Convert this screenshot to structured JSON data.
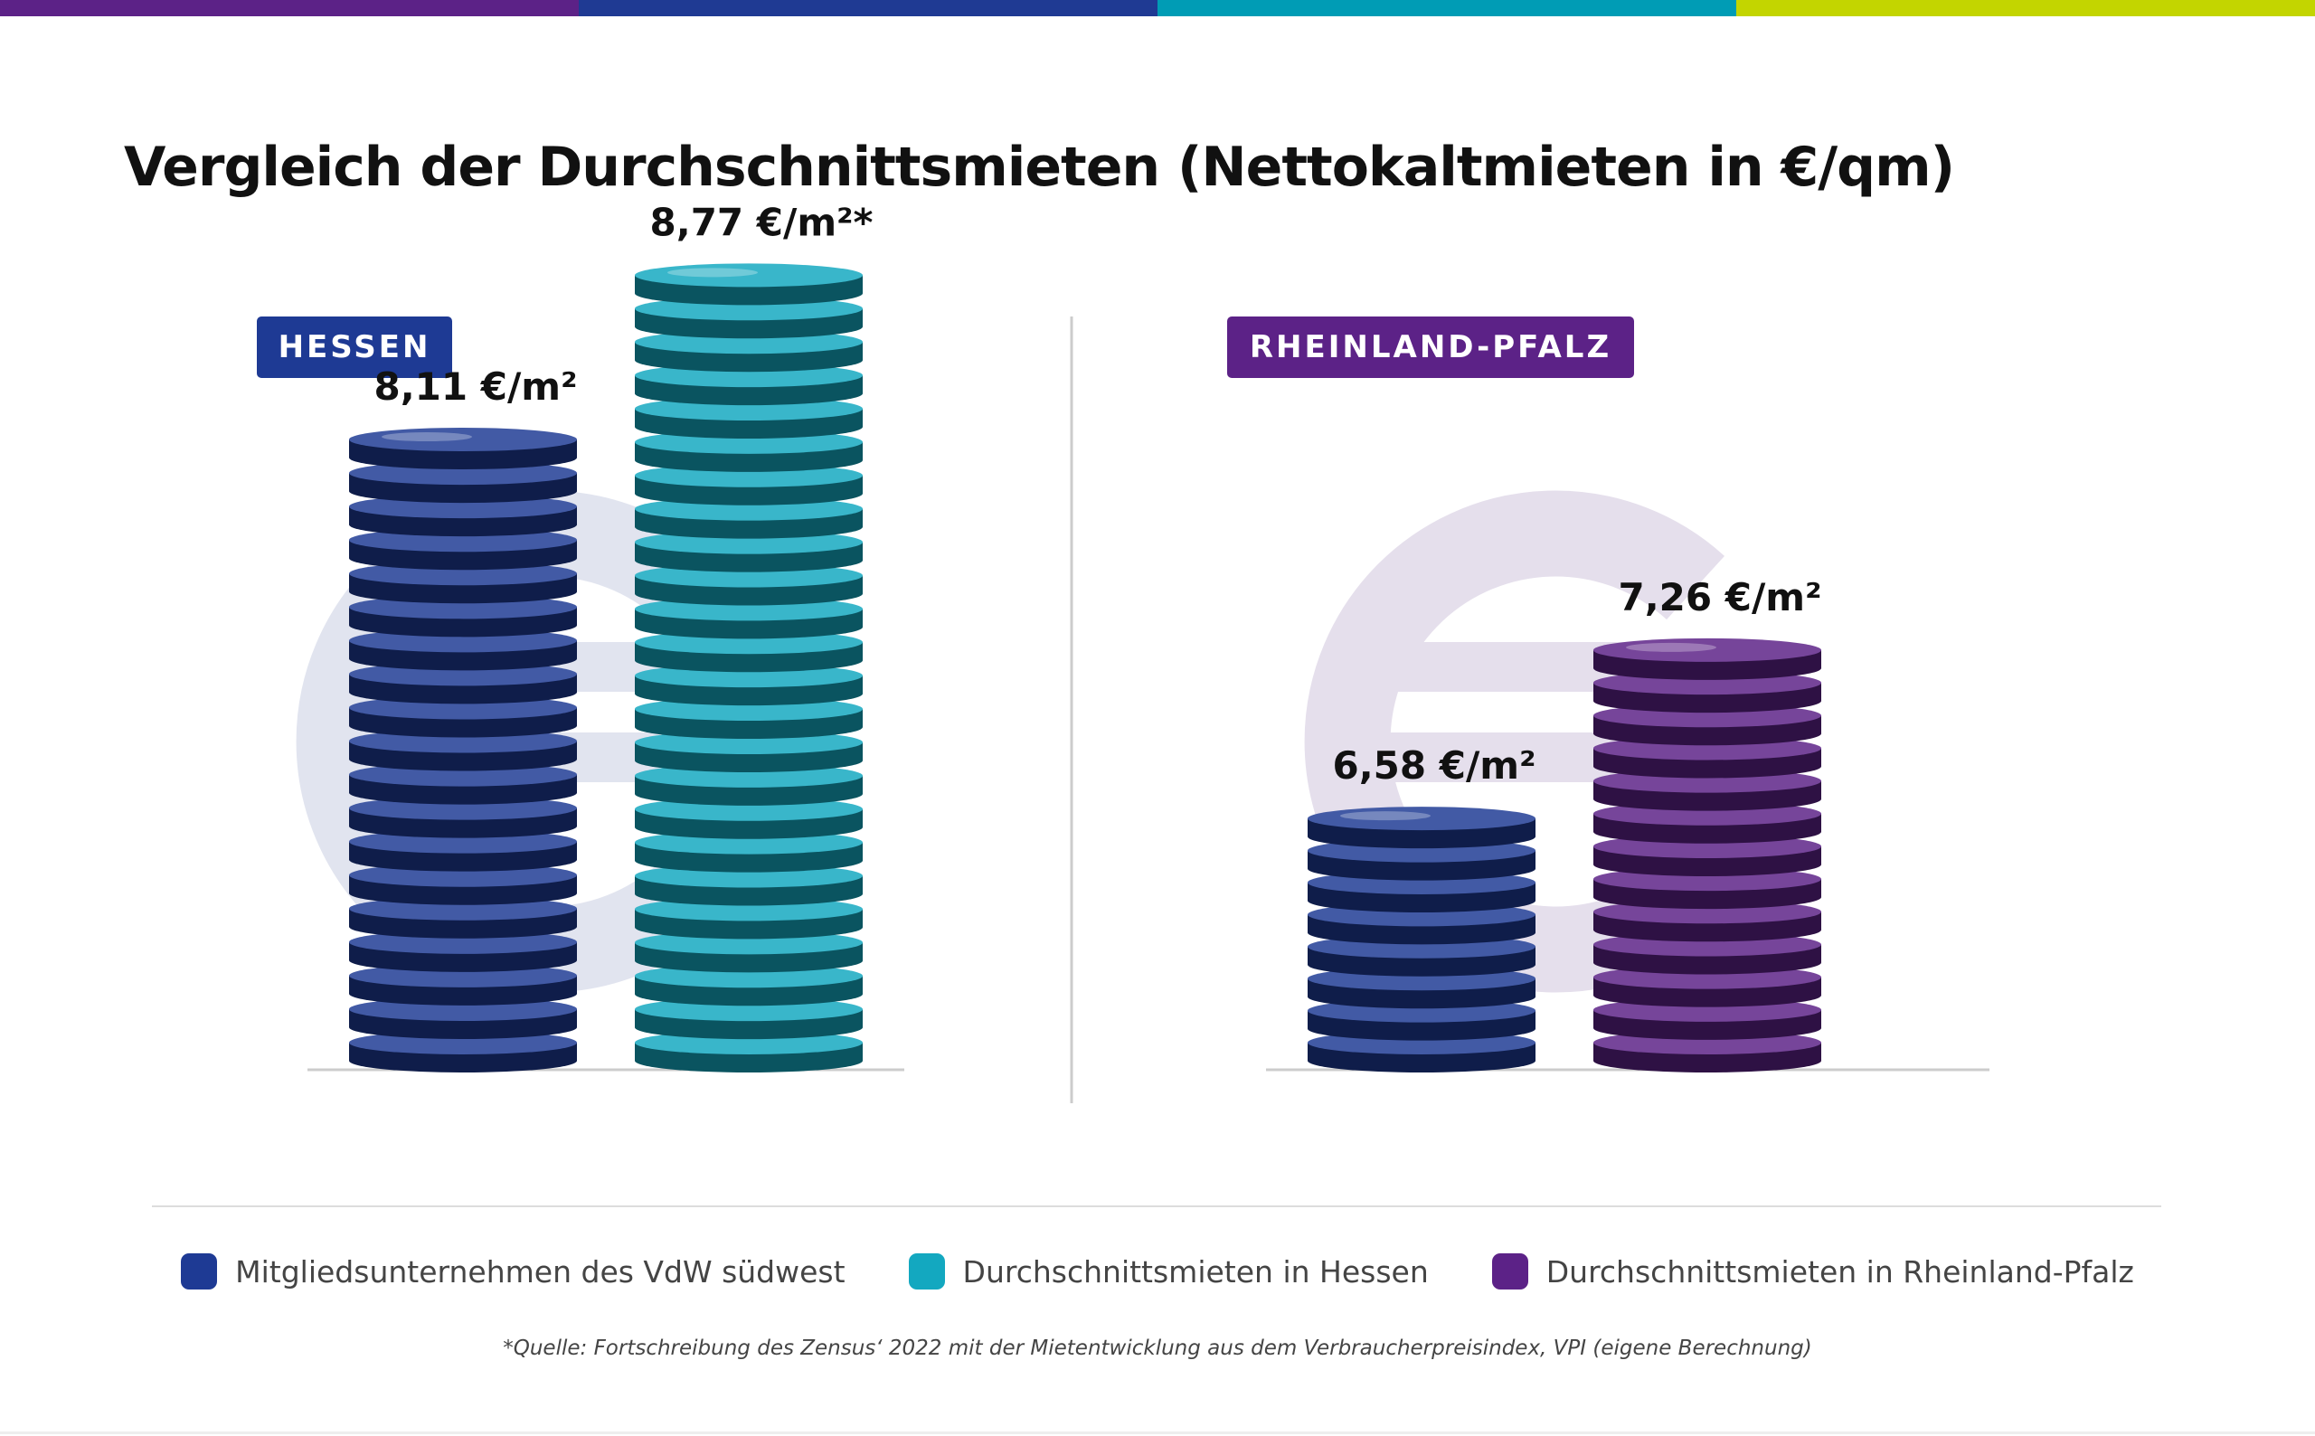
{
  "colors": {
    "band": [
      "#5c2287",
      "#1f3a93",
      "#009cb5",
      "#c3d500"
    ],
    "vdw": "#1e3a94",
    "hessen": "#13a8c0",
    "rlp": "#5c2287",
    "axis": "#cccccc",
    "watermark": [
      "#e1e4ef",
      "#e5dfec"
    ]
  },
  "title": "Vergleich der Durchschnittsmieten (Nettokaltmieten in €/qm)",
  "chart_data": {
    "type": "bar",
    "unit": "€/m²",
    "groups": [
      {
        "label": "HESSEN",
        "label_color": "#1e3a94",
        "bars": [
          {
            "series": "Mitgliedsunternehmen des VdW südwest",
            "value": 8.11,
            "label": "8,11 €/m²",
            "color": "#1e3a94"
          },
          {
            "series": "Durchschnittsmieten in Hessen",
            "value": 8.77,
            "label": "8,77 €/m²*",
            "color": "#13a8c0"
          }
        ]
      },
      {
        "label": "RHEINLAND-PFALZ",
        "label_color": "#5c2287",
        "bars": [
          {
            "series": "Mitgliedsunternehmen des VdW südwest",
            "value": 6.58,
            "label": "6,58 €/m²",
            "color": "#1e3a94"
          },
          {
            "series": "Durchschnittsmieten in Rheinland-Pfalz",
            "value": 7.26,
            "label": "7,26 €/m²",
            "color": "#5c2287"
          }
        ]
      }
    ],
    "legend": [
      {
        "label": "Mitgliedsunternehmen des VdW südwest",
        "color": "#1e3a94"
      },
      {
        "label": "Durchschnittsmieten in Hessen",
        "color": "#13a8c0"
      },
      {
        "label": "Durchschnittsmieten in Rheinland-Pfalz",
        "color": "#5c2287"
      }
    ],
    "legend_position": "bottom",
    "grid": false
  },
  "footnote": "*Quelle: Fortschreibung des Zensus‘ 2022 mit der Mietentwicklung aus dem Verbraucherpreisindex, VPI (eigene Berechnung)"
}
